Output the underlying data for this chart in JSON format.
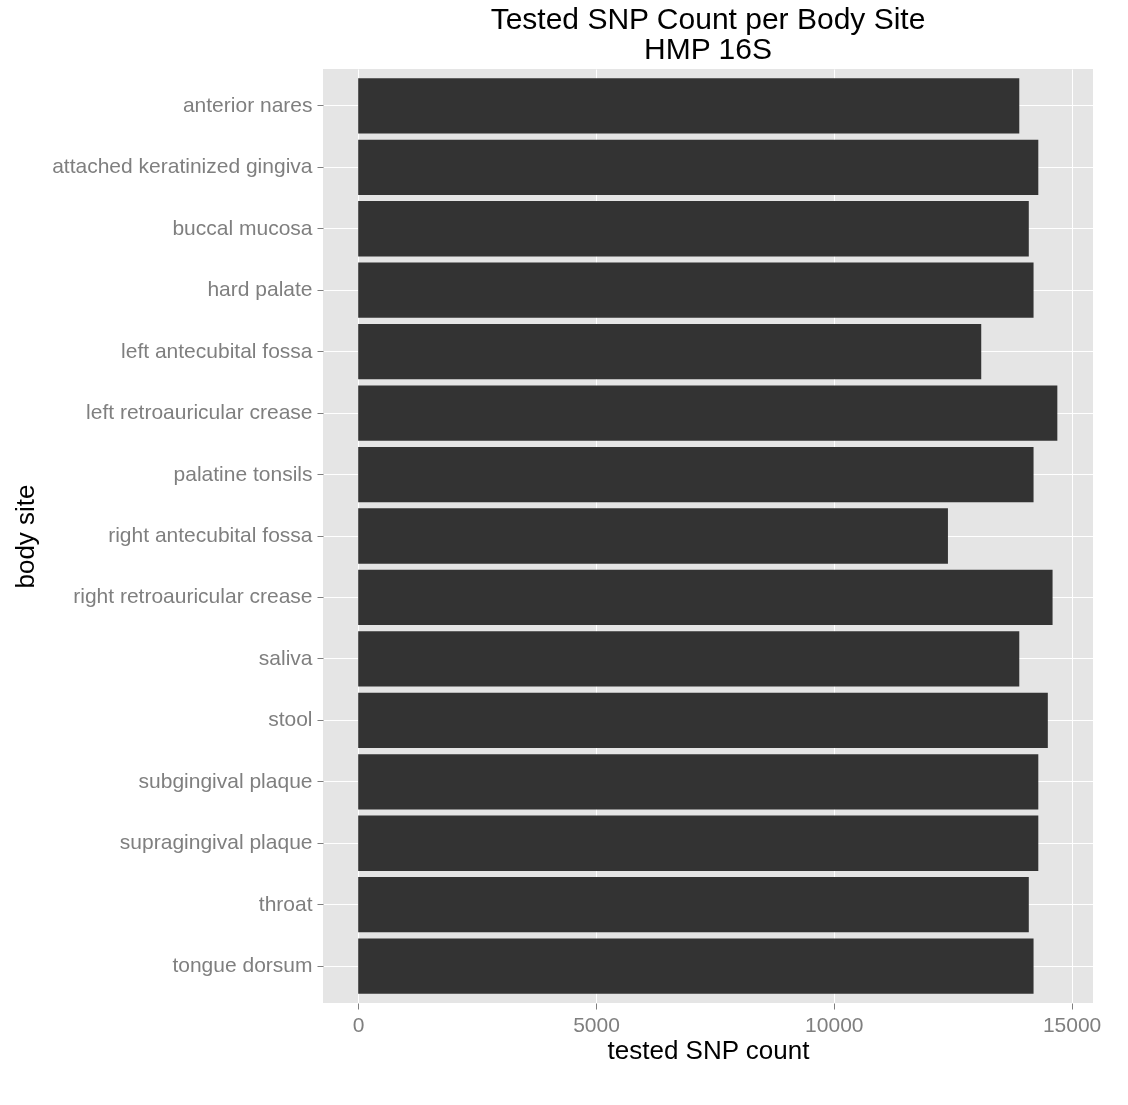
{
  "chart_data": {
    "type": "bar",
    "orientation": "horizontal",
    "title": "Tested SNP Count per Body Site",
    "subtitle": "HMP 16S",
    "xlabel": "tested SNP count",
    "ylabel": "body site",
    "categories": [
      "anterior nares",
      "attached keratinized gingiva",
      "buccal mucosa",
      "hard palate",
      "left antecubital fossa",
      "left retroauricular crease",
      "palatine tonsils",
      "right antecubital fossa",
      "right retroauricular crease",
      "saliva",
      "stool",
      "subgingival plaque",
      "supragingival plaque",
      "throat",
      "tongue dorsum"
    ],
    "values": [
      13900,
      14300,
      14100,
      14200,
      13100,
      14700,
      14200,
      12400,
      14600,
      13900,
      14500,
      14300,
      14300,
      14100,
      14200
    ],
    "color": "#333333",
    "xlim": [
      -740,
      15450
    ],
    "xticks": [
      0,
      5000,
      10000,
      15000
    ],
    "grid": true
  }
}
